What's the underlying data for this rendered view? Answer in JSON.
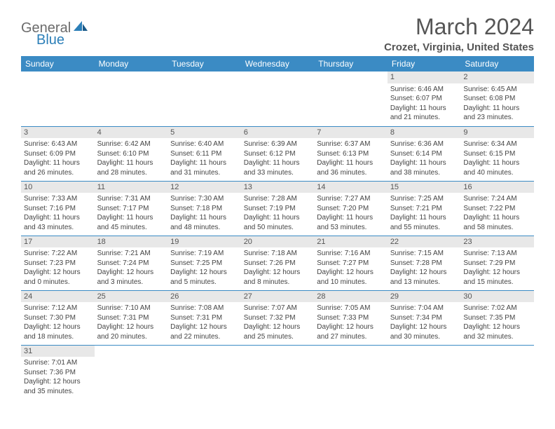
{
  "logo": {
    "text1": "General",
    "text2": "Blue"
  },
  "header": {
    "month_title": "March 2024",
    "location": "Crozet, Virginia, United States"
  },
  "day_labels": [
    "Sunday",
    "Monday",
    "Tuesday",
    "Wednesday",
    "Thursday",
    "Friday",
    "Saturday"
  ],
  "colors": {
    "header_bg": "#3b8bc4",
    "header_text": "#ffffff",
    "day_num_bg": "#e8e8e8",
    "text": "#444444",
    "title": "#555555"
  },
  "weeks": [
    [
      {
        "empty": true
      },
      {
        "empty": true
      },
      {
        "empty": true
      },
      {
        "empty": true
      },
      {
        "empty": true
      },
      {
        "day": "1",
        "sunrise": "Sunrise: 6:46 AM",
        "sunset": "Sunset: 6:07 PM",
        "daylight": "Daylight: 11 hours and 21 minutes."
      },
      {
        "day": "2",
        "sunrise": "Sunrise: 6:45 AM",
        "sunset": "Sunset: 6:08 PM",
        "daylight": "Daylight: 11 hours and 23 minutes."
      }
    ],
    [
      {
        "day": "3",
        "sunrise": "Sunrise: 6:43 AM",
        "sunset": "Sunset: 6:09 PM",
        "daylight": "Daylight: 11 hours and 26 minutes."
      },
      {
        "day": "4",
        "sunrise": "Sunrise: 6:42 AM",
        "sunset": "Sunset: 6:10 PM",
        "daylight": "Daylight: 11 hours and 28 minutes."
      },
      {
        "day": "5",
        "sunrise": "Sunrise: 6:40 AM",
        "sunset": "Sunset: 6:11 PM",
        "daylight": "Daylight: 11 hours and 31 minutes."
      },
      {
        "day": "6",
        "sunrise": "Sunrise: 6:39 AM",
        "sunset": "Sunset: 6:12 PM",
        "daylight": "Daylight: 11 hours and 33 minutes."
      },
      {
        "day": "7",
        "sunrise": "Sunrise: 6:37 AM",
        "sunset": "Sunset: 6:13 PM",
        "daylight": "Daylight: 11 hours and 36 minutes."
      },
      {
        "day": "8",
        "sunrise": "Sunrise: 6:36 AM",
        "sunset": "Sunset: 6:14 PM",
        "daylight": "Daylight: 11 hours and 38 minutes."
      },
      {
        "day": "9",
        "sunrise": "Sunrise: 6:34 AM",
        "sunset": "Sunset: 6:15 PM",
        "daylight": "Daylight: 11 hours and 40 minutes."
      }
    ],
    [
      {
        "day": "10",
        "sunrise": "Sunrise: 7:33 AM",
        "sunset": "Sunset: 7:16 PM",
        "daylight": "Daylight: 11 hours and 43 minutes."
      },
      {
        "day": "11",
        "sunrise": "Sunrise: 7:31 AM",
        "sunset": "Sunset: 7:17 PM",
        "daylight": "Daylight: 11 hours and 45 minutes."
      },
      {
        "day": "12",
        "sunrise": "Sunrise: 7:30 AM",
        "sunset": "Sunset: 7:18 PM",
        "daylight": "Daylight: 11 hours and 48 minutes."
      },
      {
        "day": "13",
        "sunrise": "Sunrise: 7:28 AM",
        "sunset": "Sunset: 7:19 PM",
        "daylight": "Daylight: 11 hours and 50 minutes."
      },
      {
        "day": "14",
        "sunrise": "Sunrise: 7:27 AM",
        "sunset": "Sunset: 7:20 PM",
        "daylight": "Daylight: 11 hours and 53 minutes."
      },
      {
        "day": "15",
        "sunrise": "Sunrise: 7:25 AM",
        "sunset": "Sunset: 7:21 PM",
        "daylight": "Daylight: 11 hours and 55 minutes."
      },
      {
        "day": "16",
        "sunrise": "Sunrise: 7:24 AM",
        "sunset": "Sunset: 7:22 PM",
        "daylight": "Daylight: 11 hours and 58 minutes."
      }
    ],
    [
      {
        "day": "17",
        "sunrise": "Sunrise: 7:22 AM",
        "sunset": "Sunset: 7:23 PM",
        "daylight": "Daylight: 12 hours and 0 minutes."
      },
      {
        "day": "18",
        "sunrise": "Sunrise: 7:21 AM",
        "sunset": "Sunset: 7:24 PM",
        "daylight": "Daylight: 12 hours and 3 minutes."
      },
      {
        "day": "19",
        "sunrise": "Sunrise: 7:19 AM",
        "sunset": "Sunset: 7:25 PM",
        "daylight": "Daylight: 12 hours and 5 minutes."
      },
      {
        "day": "20",
        "sunrise": "Sunrise: 7:18 AM",
        "sunset": "Sunset: 7:26 PM",
        "daylight": "Daylight: 12 hours and 8 minutes."
      },
      {
        "day": "21",
        "sunrise": "Sunrise: 7:16 AM",
        "sunset": "Sunset: 7:27 PM",
        "daylight": "Daylight: 12 hours and 10 minutes."
      },
      {
        "day": "22",
        "sunrise": "Sunrise: 7:15 AM",
        "sunset": "Sunset: 7:28 PM",
        "daylight": "Daylight: 12 hours and 13 minutes."
      },
      {
        "day": "23",
        "sunrise": "Sunrise: 7:13 AM",
        "sunset": "Sunset: 7:29 PM",
        "daylight": "Daylight: 12 hours and 15 minutes."
      }
    ],
    [
      {
        "day": "24",
        "sunrise": "Sunrise: 7:12 AM",
        "sunset": "Sunset: 7:30 PM",
        "daylight": "Daylight: 12 hours and 18 minutes."
      },
      {
        "day": "25",
        "sunrise": "Sunrise: 7:10 AM",
        "sunset": "Sunset: 7:31 PM",
        "daylight": "Daylight: 12 hours and 20 minutes."
      },
      {
        "day": "26",
        "sunrise": "Sunrise: 7:08 AM",
        "sunset": "Sunset: 7:31 PM",
        "daylight": "Daylight: 12 hours and 22 minutes."
      },
      {
        "day": "27",
        "sunrise": "Sunrise: 7:07 AM",
        "sunset": "Sunset: 7:32 PM",
        "daylight": "Daylight: 12 hours and 25 minutes."
      },
      {
        "day": "28",
        "sunrise": "Sunrise: 7:05 AM",
        "sunset": "Sunset: 7:33 PM",
        "daylight": "Daylight: 12 hours and 27 minutes."
      },
      {
        "day": "29",
        "sunrise": "Sunrise: 7:04 AM",
        "sunset": "Sunset: 7:34 PM",
        "daylight": "Daylight: 12 hours and 30 minutes."
      },
      {
        "day": "30",
        "sunrise": "Sunrise: 7:02 AM",
        "sunset": "Sunset: 7:35 PM",
        "daylight": "Daylight: 12 hours and 32 minutes."
      }
    ],
    [
      {
        "day": "31",
        "sunrise": "Sunrise: 7:01 AM",
        "sunset": "Sunset: 7:36 PM",
        "daylight": "Daylight: 12 hours and 35 minutes."
      },
      {
        "empty": true
      },
      {
        "empty": true
      },
      {
        "empty": true
      },
      {
        "empty": true
      },
      {
        "empty": true
      },
      {
        "empty": true
      }
    ]
  ]
}
